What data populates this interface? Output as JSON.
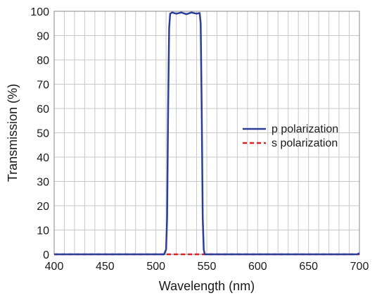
{
  "chart_data": {
    "type": "line",
    "xlabel": "Wavelength (nm)",
    "ylabel": "Transmission (%)",
    "xlim": [
      400,
      700
    ],
    "ylim": [
      0,
      100
    ],
    "xticks": [
      400,
      450,
      500,
      550,
      600,
      650,
      700
    ],
    "yticks": [
      0,
      10,
      20,
      30,
      40,
      50,
      60,
      70,
      80,
      90,
      100
    ],
    "grid": true,
    "legend_position": "right",
    "series": [
      {
        "name": "p polarization",
        "color": "#2b3f9a",
        "style": "solid",
        "x": [
          400,
          508,
          510,
          511,
          512,
          513,
          514,
          516,
          520,
          525,
          530,
          535,
          540,
          543,
          544,
          545,
          546,
          547,
          548,
          550,
          600,
          650,
          698,
          700
        ],
        "y": [
          0,
          0,
          2,
          15,
          60,
          93,
          99,
          99.5,
          99,
          99.5,
          98.8,
          99.5,
          99,
          99.3,
          95,
          60,
          15,
          2,
          0,
          0,
          0,
          0,
          0,
          0.5
        ]
      },
      {
        "name": "s polarization",
        "color": "#e02020",
        "style": "dashed",
        "x": [
          400,
          500,
          550,
          600,
          650,
          700
        ],
        "y": [
          0,
          0,
          0,
          0,
          0,
          0
        ]
      }
    ]
  }
}
